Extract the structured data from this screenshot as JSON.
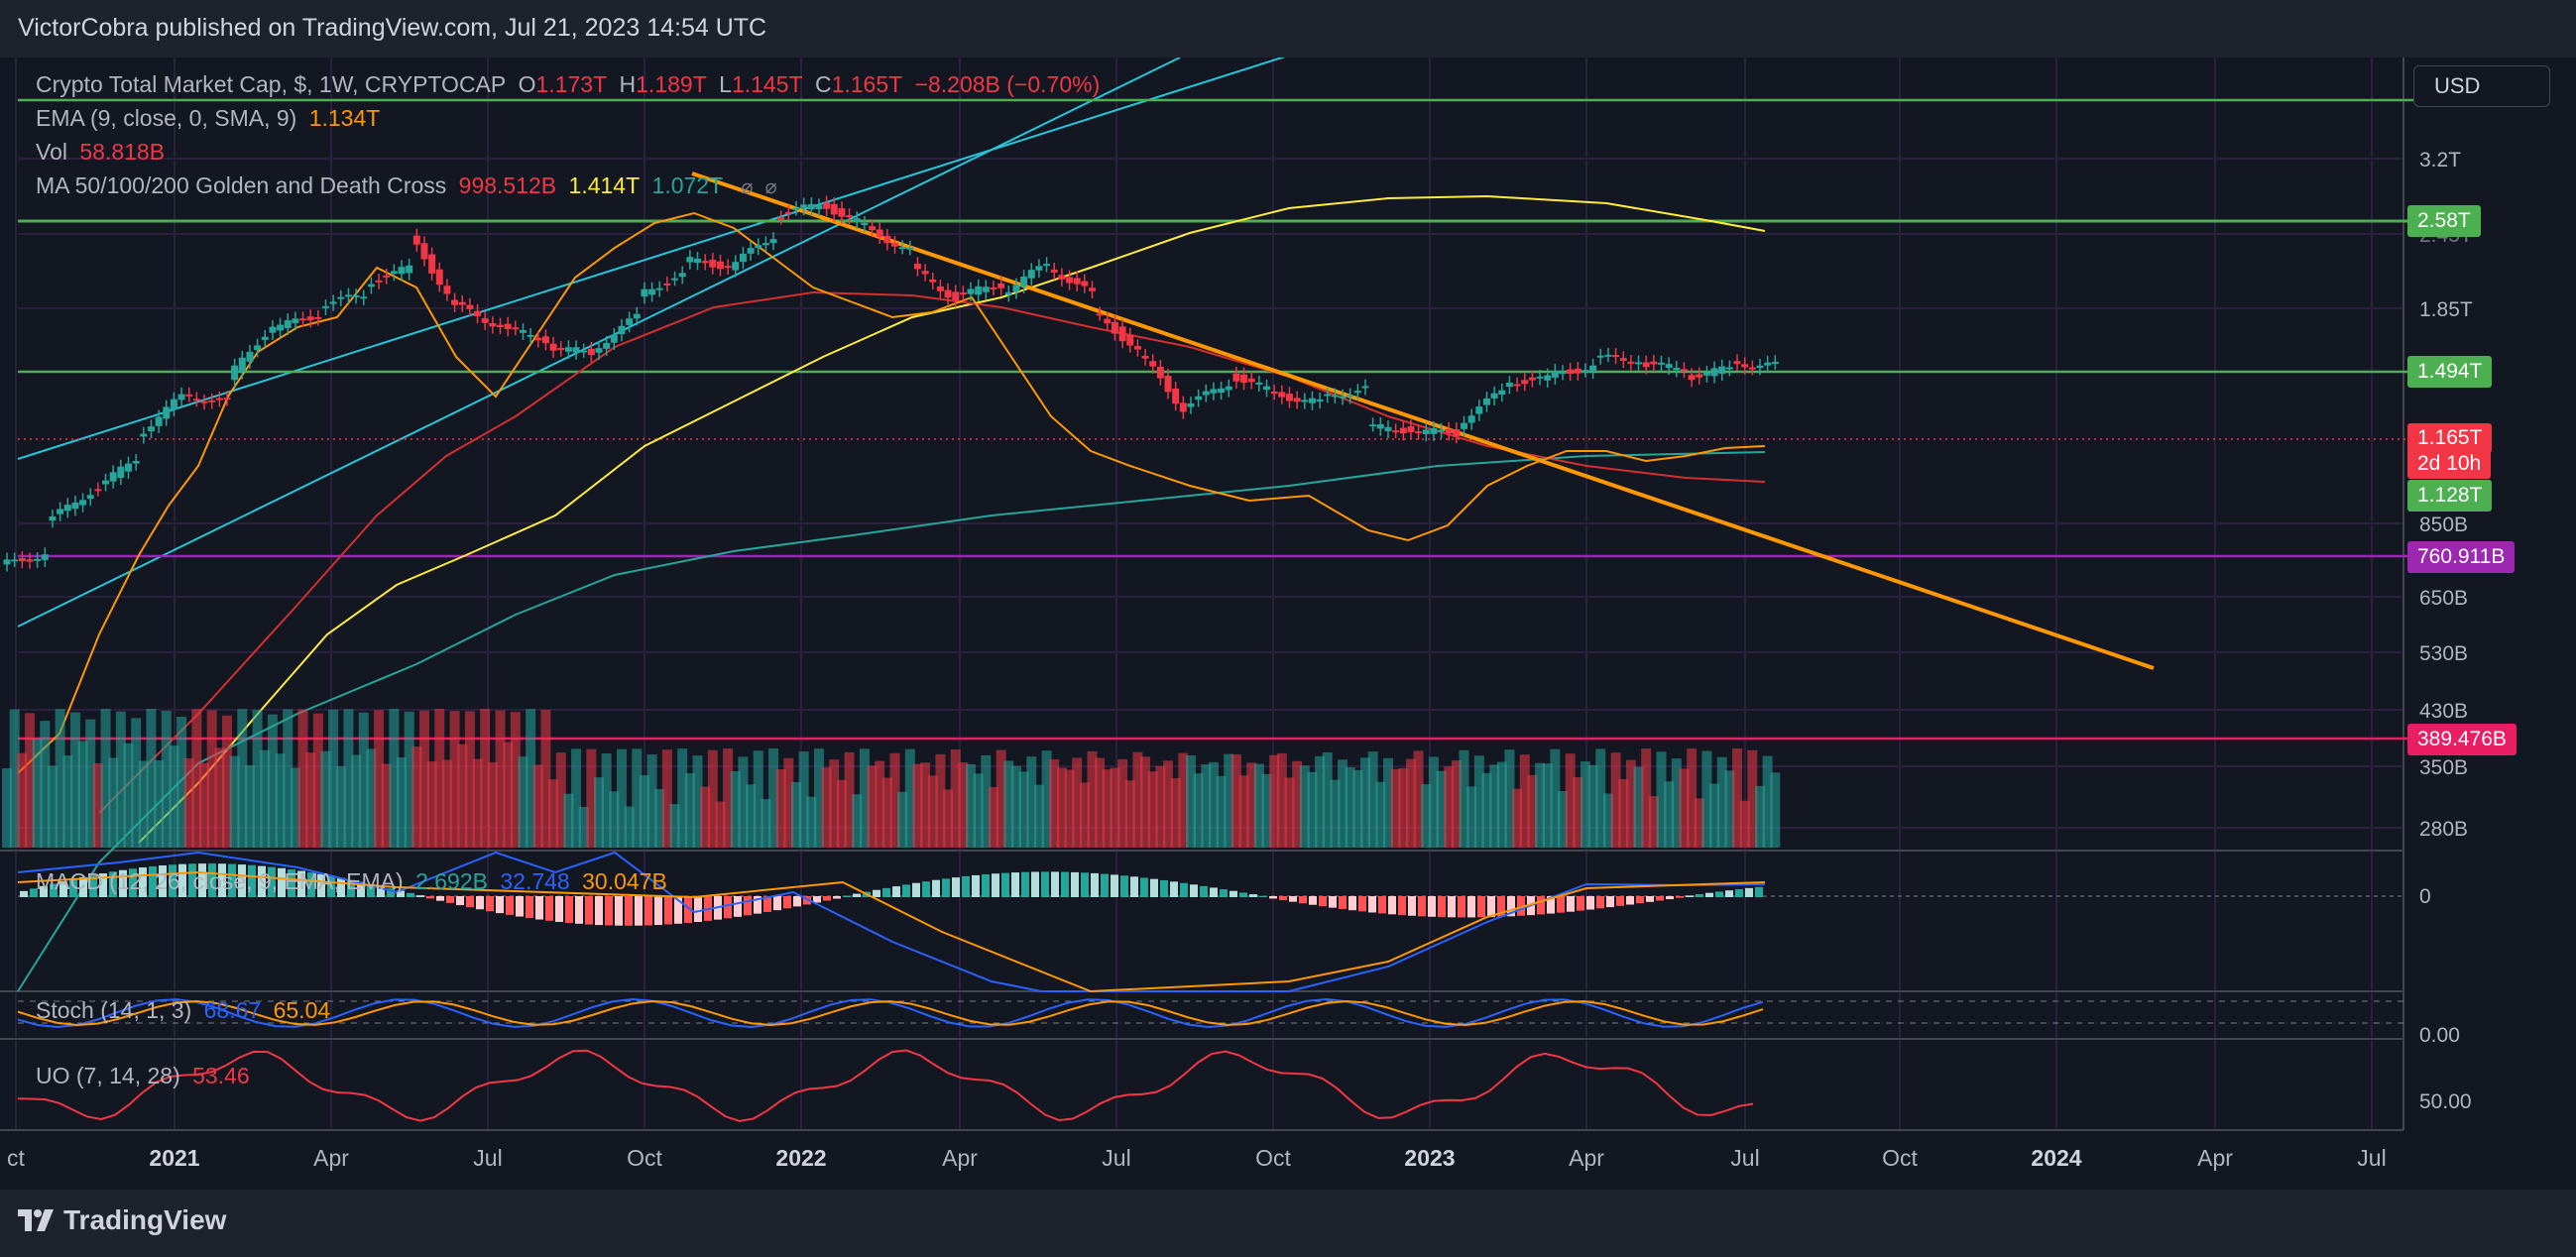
{
  "header": {
    "text": "VictorCobra published on TradingView.com, Jul 21, 2023 14:54 UTC"
  },
  "footer": {
    "brand": "TradingView"
  },
  "currency_button": "USD",
  "legend": {
    "main": {
      "title": "Crypto Total Market Cap, $, 1W, CRYPTOCAP",
      "o_label": "O",
      "o": "1.173T",
      "h_label": "H",
      "h": "1.189T",
      "l_label": "L",
      "l": "1.145T",
      "c_label": "C",
      "c": "1.165T",
      "change": "−8.208B (−0.70%)"
    },
    "ema": {
      "label": "EMA (9, close, 0, SMA, 9)",
      "value": "1.134T"
    },
    "vol": {
      "label": "Vol",
      "value": "58.818B"
    },
    "ma": {
      "label": "MA 50/100/200 Golden and Death Cross",
      "v1": "998.512B",
      "v2": "1.414T",
      "v3": "1.072T"
    },
    "macd": {
      "label": "MACD (12, 26, close, 9, EMA, EMA)",
      "v1": "2.692B",
      "v2": "32.748",
      "v3": "30.047B"
    },
    "stoch": {
      "label": "Stoch (14, 1, 3)",
      "v1": "68.67",
      "v2": "65.04"
    },
    "uo": {
      "label": "UO (7, 14, 28)",
      "value": "53.46"
    }
  },
  "price_axis": {
    "labels": [
      "3.2T",
      "2.45T",
      "1.85T",
      "850B",
      "650B",
      "530B",
      "430B",
      "350B",
      "280B"
    ],
    "badges": [
      {
        "text": "2.58T",
        "color": "#4caf50"
      },
      {
        "text": "1.494T",
        "color": "#4caf50"
      },
      {
        "text": "1.165T",
        "color": "#f23645"
      },
      {
        "text": "2d 10h",
        "color": "#f23645"
      },
      {
        "text": "1.128T",
        "color": "#4caf50"
      },
      {
        "text": "760.911B",
        "color": "#9c27b0"
      },
      {
        "text": "389.476B",
        "color": "#e91e63"
      }
    ],
    "macd_zero": "0",
    "stoch_label": "0.00",
    "uo_label": "50.00"
  },
  "time_axis": {
    "ticks": [
      {
        "label": "ct",
        "bold": false
      },
      {
        "label": "2021",
        "bold": true
      },
      {
        "label": "Apr",
        "bold": false
      },
      {
        "label": "Jul",
        "bold": false
      },
      {
        "label": "Oct",
        "bold": false
      },
      {
        "label": "2022",
        "bold": true
      },
      {
        "label": "Apr",
        "bold": false
      },
      {
        "label": "Jul",
        "bold": false
      },
      {
        "label": "Oct",
        "bold": false
      },
      {
        "label": "2023",
        "bold": true
      },
      {
        "label": "Apr",
        "bold": false
      },
      {
        "label": "Jul",
        "bold": false
      },
      {
        "label": "Oct",
        "bold": false
      },
      {
        "label": "2024",
        "bold": true
      },
      {
        "label": "Apr",
        "bold": false
      },
      {
        "label": "Jul",
        "bold": false
      }
    ]
  },
  "colors": {
    "up": "#26a69a",
    "down": "#f23645",
    "ema": "#ff9800",
    "ma50": "#d32f2f",
    "ma100": "#ffeb3b",
    "ma200": "#26a69a",
    "trendline": "#ff9800",
    "support_green": "#4caf50",
    "support_purple": "#9c27b0",
    "support_pink": "#e91e63",
    "channel": "#26c6da",
    "macd": "#2962ff",
    "signal": "#ff9800",
    "uo": "#f23645"
  },
  "chart_data": {
    "type": "candlestick",
    "title": "Crypto Total Market Cap, $, 1W, CRYPTOCAP",
    "y_scale": "log",
    "horizontal_levels": [
      "2.58T",
      "1.494T",
      "1.128T",
      "760.911B",
      "389.476B"
    ],
    "trendline": {
      "from": "Nov 2021 ~3.0T",
      "to": "Mar 2024 ~500B"
    },
    "weeks": [
      [
        "Nov 2020",
        0.37,
        0.39
      ],
      [
        "Dec 2020",
        0.47,
        0.56
      ],
      [
        "Dec 2020",
        0.56,
        0.68
      ],
      [
        "Jan 2021",
        0.76,
        0.98
      ],
      [
        "Jan 2021",
        0.98,
        0.94
      ],
      [
        "Feb 2021",
        1.08,
        1.45
      ],
      [
        "Feb 2021",
        1.45,
        1.55
      ],
      [
        "Mar 2021",
        1.65,
        1.75
      ],
      [
        "Apr 2021",
        1.85,
        2.05
      ],
      [
        "May 2021",
        2.45,
        1.6
      ],
      [
        "May 2021",
        1.65,
        1.45
      ],
      [
        "Jun 2021",
        1.45,
        1.35
      ],
      [
        "Jul 2021",
        1.3,
        1.25
      ],
      [
        "Jul 2021",
        1.25,
        1.55
      ],
      [
        "Aug 2021",
        1.75,
        1.95
      ],
      [
        "Sep 2021",
        2.15,
        2.05
      ],
      [
        "Oct 2021",
        2.05,
        2.45
      ],
      [
        "Nov 2021",
        2.75,
        2.95
      ],
      [
        "Nov 2021",
        2.95,
        2.6
      ],
      [
        "Dec 2021",
        2.55,
        2.25
      ],
      [
        "Jan 2022",
        2.05,
        1.7
      ],
      [
        "Feb 2022",
        1.75,
        1.85
      ],
      [
        "Mar 2022",
        1.75,
        2.1
      ],
      [
        "Apr 2022",
        2.05,
        1.75
      ],
      [
        "May 2022",
        1.6,
        1.25
      ],
      [
        "Jun 2022",
        1.25,
        0.9
      ],
      [
        "Jul 2022",
        0.92,
        1.05
      ],
      [
        "Aug 2022",
        1.1,
        1.0
      ],
      [
        "Sep 2022",
        0.98,
        0.94
      ],
      [
        "Oct 2022",
        0.96,
        1.02
      ],
      [
        "Nov 2022",
        0.82,
        0.8
      ],
      [
        "Dec 2022",
        0.8,
        0.79
      ],
      [
        "Jan 2023",
        0.82,
        1.01
      ],
      [
        "Feb 2023",
        1.05,
        1.08
      ],
      [
        "Mar 2023",
        1.1,
        1.15
      ],
      [
        "Apr 2023",
        1.22,
        1.2
      ],
      [
        "May 2023",
        1.17,
        1.15
      ],
      [
        "Jun 2023",
        1.08,
        1.15
      ],
      [
        "Jul 2023",
        1.173,
        1.165
      ]
    ],
    "last": {
      "open": "1.173T",
      "high": "1.189T",
      "low": "1.145T",
      "close": "1.165T"
    }
  }
}
